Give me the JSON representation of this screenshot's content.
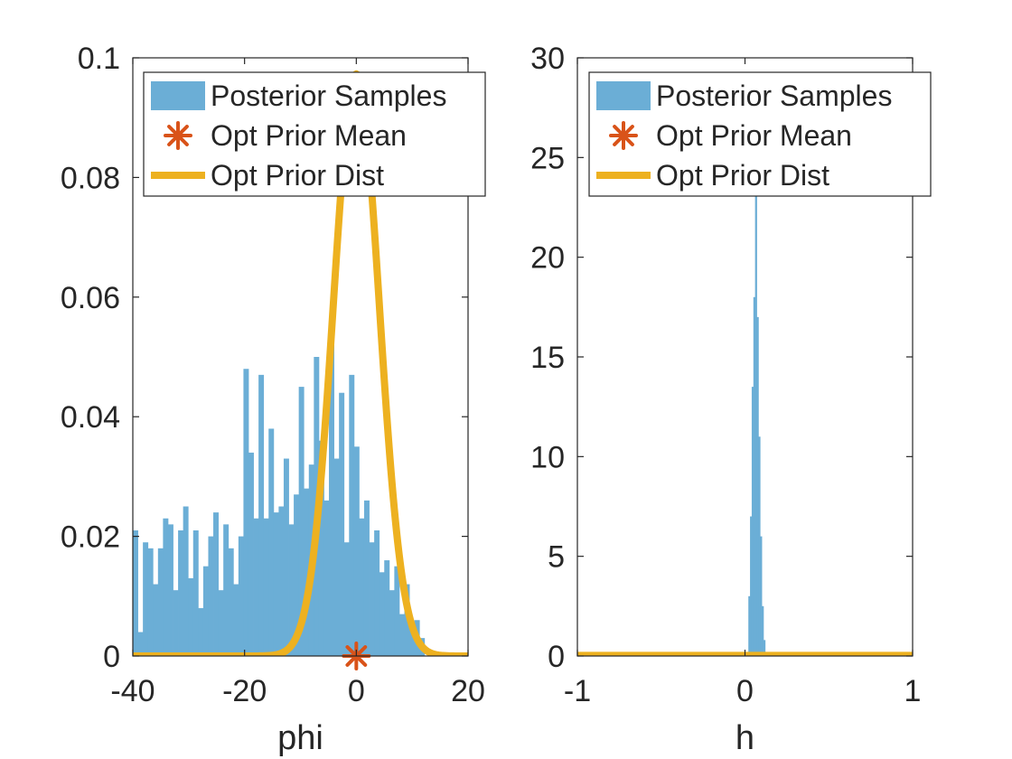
{
  "chart_data": [
    {
      "type": "histogram",
      "xlabel": "phi",
      "ylabel": "",
      "xlim": [
        -40,
        20
      ],
      "ylim": [
        0,
        0.1
      ],
      "xticks": [
        "-40",
        "-20",
        "0",
        "20"
      ],
      "yticks": [
        "0",
        "0.02",
        "0.04",
        "0.06",
        "0.08",
        "0.1"
      ],
      "grid": false,
      "legend_position": "top-right",
      "legend": [
        "Posterior Samples",
        "Opt Prior Mean",
        "Opt Prior Dist"
      ],
      "series": [
        {
          "name": "Posterior Samples",
          "type": "histogram",
          "color": "#6baed6",
          "bin_width": 0.9,
          "bins_start": -40,
          "values": [
            0.021,
            0.004,
            0.019,
            0.018,
            0.012,
            0.018,
            0.023,
            0.022,
            0.011,
            0.021,
            0.025,
            0.013,
            0.021,
            0.008,
            0.015,
            0.02,
            0.024,
            0.011,
            0.022,
            0.018,
            0.012,
            0.02,
            0.048,
            0.034,
            0.023,
            0.047,
            0.023,
            0.038,
            0.024,
            0.025,
            0.033,
            0.022,
            0.027,
            0.045,
            0.028,
            0.032,
            0.05,
            0.036,
            0.026,
            0.052,
            0.033,
            0.044,
            0.019,
            0.047,
            0.035,
            0.023,
            0.026,
            0.019,
            0.021,
            0.014,
            0.016,
            0.011,
            0.015,
            0.007,
            0.012,
            0.005,
            0.006,
            0.003
          ]
        },
        {
          "name": "Opt Prior Mean",
          "type": "scatter",
          "marker": "asterisk",
          "color": "#d95319",
          "points": [
            [
              0,
              0
            ]
          ]
        },
        {
          "name": "Opt Prior Dist",
          "type": "line",
          "color": "#edb120",
          "distribution": "normal",
          "mean": 0,
          "std": 4.1,
          "x_range": [
            -40,
            20
          ]
        }
      ]
    },
    {
      "type": "histogram",
      "xlabel": "h",
      "ylabel": "",
      "xlim": [
        -1,
        1
      ],
      "ylim": [
        0,
        30
      ],
      "xticks": [
        "-1",
        "0",
        "1"
      ],
      "yticks": [
        "0",
        "5",
        "10",
        "15",
        "20",
        "25",
        "30"
      ],
      "grid": false,
      "legend_position": "top-right",
      "legend": [
        "Posterior Samples",
        "Opt Prior Mean",
        "Opt Prior Dist"
      ],
      "series": [
        {
          "name": "Posterior Samples",
          "type": "histogram",
          "color": "#6baed6",
          "bins": [
            {
              "x0": 0.02,
              "x1": 0.03,
              "y": 3
            },
            {
              "x0": 0.03,
              "x1": 0.04,
              "y": 7
            },
            {
              "x0": 0.04,
              "x1": 0.05,
              "y": 13.5
            },
            {
              "x0": 0.05,
              "x1": 0.06,
              "y": 18
            },
            {
              "x0": 0.06,
              "x1": 0.07,
              "y": 24.5
            },
            {
              "x0": 0.07,
              "x1": 0.08,
              "y": 17
            },
            {
              "x0": 0.08,
              "x1": 0.09,
              "y": 11
            },
            {
              "x0": 0.09,
              "x1": 0.1,
              "y": 6
            },
            {
              "x0": 0.1,
              "x1": 0.11,
              "y": 2.5
            },
            {
              "x0": 0.11,
              "x1": 0.12,
              "y": 0.8
            }
          ]
        },
        {
          "name": "Opt Prior Dist",
          "type": "line",
          "color": "#edb120",
          "points": [
            [
              -1,
              0.03
            ],
            [
              1,
              0.03
            ]
          ]
        }
      ]
    }
  ]
}
